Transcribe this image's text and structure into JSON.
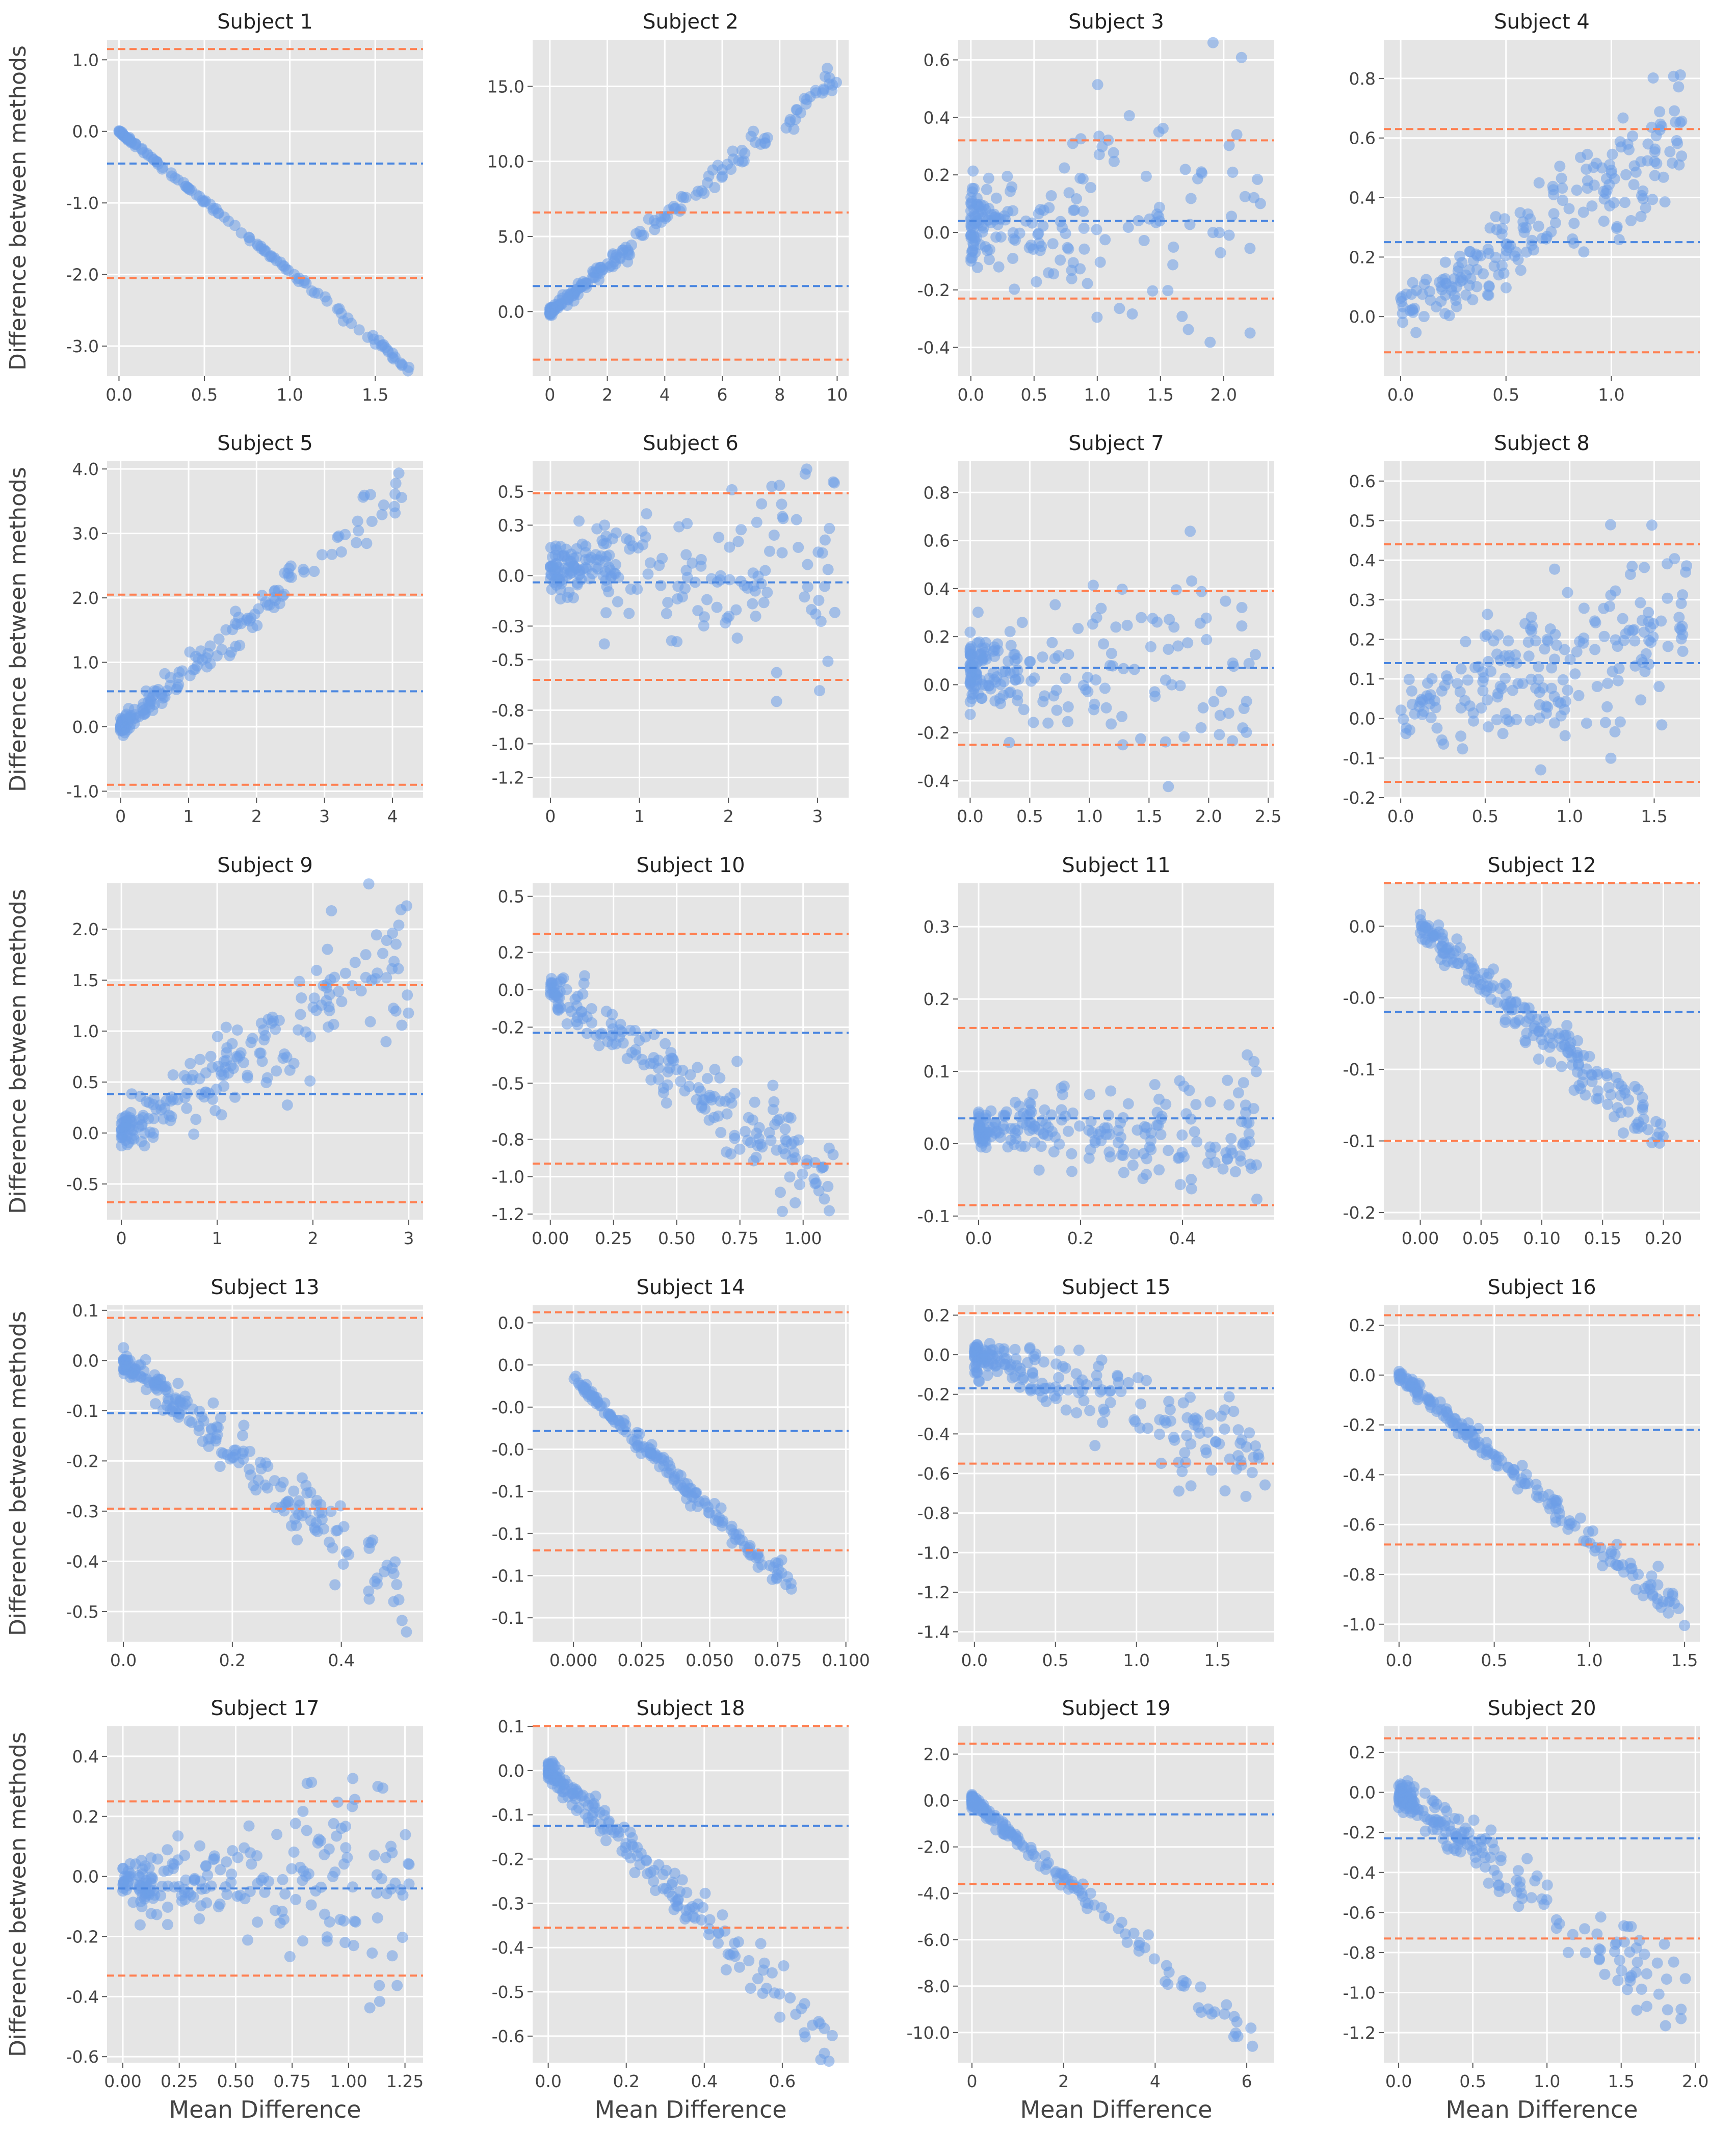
{
  "figure": {
    "ylabel": "Difference between methods",
    "xlabel": "Mean Difference"
  },
  "colors": {
    "panel_bg": "#e5e5e5",
    "grid": "#ffffff",
    "point": "#6d9ee8",
    "mean_line": "#4a86e0",
    "limit_line": "#ff7f50",
    "text": "#222222",
    "tick_text": "#444444"
  },
  "chart_data": [
    {
      "type": "scatter",
      "title": "Subject 1",
      "mean": -0.45,
      "loa": [
        1.15,
        -2.05
      ],
      "xlim": [
        -0.07,
        1.78
      ],
      "ylim": [
        -3.42,
        1.28
      ],
      "xticks": [
        0,
        0.5,
        1,
        1.5
      ],
      "xtick_labels": [
        "0.0",
        "0.5",
        "1.0",
        "1.5"
      ],
      "yticks": [
        1,
        0,
        -1,
        -2,
        -3
      ],
      "ytick_labels": [
        "1.0",
        "0.0",
        "-1.0",
        "-2.0",
        "-3.0"
      ],
      "pattern": {
        "shape": "diag",
        "n": 130,
        "x_max": 1.7,
        "slope": -1.95,
        "spread": 0.03
      }
    },
    {
      "type": "scatter",
      "title": "Subject 2",
      "mean": 1.7,
      "loa": [
        6.6,
        -3.2
      ],
      "xlim": [
        -0.6,
        10.4
      ],
      "ylim": [
        -4.3,
        18.1
      ],
      "xticks": [
        0,
        2,
        4,
        6,
        8,
        10
      ],
      "xtick_labels": [
        "0",
        "2",
        "4",
        "6",
        "8",
        "10"
      ],
      "yticks": [
        15,
        10,
        5,
        0
      ],
      "ytick_labels": [
        "15.0",
        "10.0",
        "5.0",
        "0.0"
      ],
      "pattern": {
        "shape": "linear",
        "n": 180,
        "x_max": 10,
        "slope": 1.55,
        "spread": 0.6,
        "skew": 2.2
      }
    },
    {
      "type": "scatter",
      "title": "Subject 3",
      "mean": 0.04,
      "loa": [
        0.32,
        -0.23
      ],
      "xlim": [
        -0.1,
        2.4
      ],
      "ylim": [
        -0.5,
        0.67
      ],
      "xticks": [
        0,
        0.5,
        1,
        1.5,
        2
      ],
      "xtick_labels": [
        "0.0",
        "0.5",
        "1.0",
        "1.5",
        "2.0"
      ],
      "yticks": [
        0.6,
        0.4,
        0.2,
        0,
        -0.2,
        -0.4
      ],
      "ytick_labels": [
        "0.6",
        "0.4",
        "0.2",
        "0.0",
        "-0.2",
        "-0.4"
      ],
      "pattern": {
        "shape": "funnel",
        "n": 190,
        "x_max": 2.3,
        "center": 0.04,
        "spread": 0.28,
        "skew": 2.5
      }
    },
    {
      "type": "scatter",
      "title": "Subject 4",
      "mean": 0.25,
      "loa": [
        0.63,
        -0.12
      ],
      "xlim": [
        -0.08,
        1.42
      ],
      "ylim": [
        -0.2,
        0.93
      ],
      "xticks": [
        0,
        0.5,
        1
      ],
      "xtick_labels": [
        "0.0",
        "0.5",
        "1.0"
      ],
      "yticks": [
        0.8,
        0.6,
        0.4,
        0.2,
        0
      ],
      "ytick_labels": [
        "0.8",
        "0.6",
        "0.4",
        "0.2",
        "0.0"
      ],
      "pattern": {
        "shape": "linear",
        "n": 200,
        "x_max": 1.35,
        "slope": 0.45,
        "spread": 0.12,
        "skew": 1.3
      }
    },
    {
      "type": "scatter",
      "title": "Subject 5",
      "mean": 0.55,
      "loa": [
        2.05,
        -0.9
      ],
      "xlim": [
        -0.2,
        4.45
      ],
      "ylim": [
        -1.1,
        4.12
      ],
      "xticks": [
        0,
        1,
        2,
        3,
        4
      ],
      "xtick_labels": [
        "0",
        "1",
        "2",
        "3",
        "4"
      ],
      "yticks": [
        4,
        3,
        2,
        1,
        0,
        -1
      ],
      "ytick_labels": [
        "4.0",
        "3.0",
        "2.0",
        "1.0",
        "0.0",
        "-1.0"
      ],
      "pattern": {
        "shape": "linear",
        "n": 170,
        "x_max": 4.2,
        "slope": 0.9,
        "spread": 0.25,
        "skew": 2.0
      }
    },
    {
      "type": "scatter",
      "title": "Subject 6",
      "mean": -0.04,
      "loa": [
        0.49,
        -0.62
      ],
      "xlim": [
        -0.2,
        3.35
      ],
      "ylim": [
        -1.32,
        0.68
      ],
      "xticks": [
        0,
        1,
        2,
        3
      ],
      "xtick_labels": [
        "0",
        "1",
        "2",
        "3"
      ],
      "yticks": [
        0.5,
        0.3,
        0,
        -0.3,
        -0.5,
        -0.8,
        -1.0,
        -1.2
      ],
      "ytick_labels": [
        "0.5",
        "0.3",
        "0.0",
        "-0.3",
        "-0.5",
        "-0.8",
        "-1.0",
        "-1.2"
      ],
      "pattern": {
        "shape": "funnel",
        "n": 210,
        "x_max": 3.2,
        "center": 0.05,
        "spread": 0.3,
        "skew": 1.8
      }
    },
    {
      "type": "scatter",
      "title": "Subject 7",
      "mean": 0.07,
      "loa": [
        0.39,
        -0.25
      ],
      "xlim": [
        -0.1,
        2.55
      ],
      "ylim": [
        -0.47,
        0.93
      ],
      "xticks": [
        0,
        0.5,
        1,
        1.5,
        2,
        2.5
      ],
      "xtick_labels": [
        "0.0",
        "0.5",
        "1.0",
        "1.5",
        "2.0",
        "2.5"
      ],
      "yticks": [
        0.8,
        0.6,
        0.4,
        0.2,
        0,
        -0.2,
        -0.4
      ],
      "ytick_labels": [
        "0.8",
        "0.6",
        "0.4",
        "0.2",
        "0.0",
        "-0.2",
        "-0.4"
      ],
      "pattern": {
        "shape": "funnel",
        "n": 200,
        "x_max": 2.4,
        "center": 0.05,
        "spread": 0.25,
        "skew": 2.5
      }
    },
    {
      "type": "scatter",
      "title": "Subject 8",
      "mean": 0.14,
      "loa": [
        0.44,
        -0.16
      ],
      "xlim": [
        -0.1,
        1.77
      ],
      "ylim": [
        -0.2,
        0.65
      ],
      "xticks": [
        0,
        0.5,
        1,
        1.5
      ],
      "xtick_labels": [
        "0.0",
        "0.5",
        "1.0",
        "1.5"
      ],
      "yticks": [
        0.6,
        0.5,
        0.4,
        0.3,
        0.2,
        0.1,
        0,
        -0.1,
        -0.2
      ],
      "ytick_labels": [
        "0.6",
        "0.5",
        "0.4",
        "0.3",
        "0.2",
        "0.1",
        "0.0",
        "-0.1",
        "-0.2"
      ],
      "pattern": {
        "shape": "linear",
        "n": 200,
        "x_max": 1.7,
        "slope": 0.15,
        "spread": 0.13,
        "skew": 1.0
      }
    },
    {
      "type": "scatter",
      "title": "Subject 9",
      "mean": 0.38,
      "loa": [
        1.45,
        -0.68
      ],
      "xlim": [
        -0.15,
        3.15
      ],
      "ylim": [
        -0.85,
        2.45
      ],
      "xticks": [
        0,
        1,
        2,
        3
      ],
      "xtick_labels": [
        "0",
        "1",
        "2",
        "3"
      ],
      "yticks": [
        2,
        1.5,
        1,
        0.5,
        0,
        -0.5
      ],
      "ytick_labels": [
        "2.0",
        "1.5",
        "1.0",
        "0.5",
        "0.0",
        "-0.5"
      ],
      "pattern": {
        "shape": "linear",
        "n": 200,
        "x_max": 3.0,
        "slope": 0.6,
        "spread": 0.35,
        "skew": 1.8
      }
    },
    {
      "type": "scatter",
      "title": "Subject 10",
      "mean": -0.23,
      "loa": [
        0.3,
        -0.93
      ],
      "xlim": [
        -0.07,
        1.18
      ],
      "ylim": [
        -1.23,
        0.57
      ],
      "xticks": [
        0,
        0.25,
        0.5,
        0.75,
        1
      ],
      "xtick_labels": [
        "0.00",
        "0.25",
        "0.50",
        "0.75",
        "1.00"
      ],
      "yticks": [
        0.5,
        0.2,
        0,
        -0.2,
        -0.5,
        -0.8,
        -1.0,
        -1.2
      ],
      "ytick_labels": [
        "0.5",
        "0.2",
        "0.0",
        "-0.2",
        "-0.5",
        "-0.8",
        "-1.0",
        "-1.2"
      ],
      "pattern": {
        "shape": "linear",
        "n": 190,
        "x_max": 1.12,
        "slope": -0.9,
        "spread": 0.15,
        "skew": 1.3
      }
    },
    {
      "type": "scatter",
      "title": "Subject 11",
      "mean": 0.035,
      "loa": [
        0.16,
        -0.085
      ],
      "xlim": [
        -0.04,
        0.58
      ],
      "ylim": [
        -0.105,
        0.36
      ],
      "xticks": [
        0,
        0.2,
        0.4
      ],
      "xtick_labels": [
        "0.0",
        "0.2",
        "0.4"
      ],
      "yticks": [
        0.3,
        0.2,
        0.1,
        0,
        -0.1
      ],
      "ytick_labels": [
        "0.3",
        "0.2",
        "0.1",
        "0.0",
        "-0.1"
      ],
      "pattern": {
        "shape": "funnel",
        "n": 220,
        "x_max": 0.55,
        "center": 0.02,
        "spread": 0.05,
        "skew": 1.8
      }
    },
    {
      "type": "scatter",
      "title": "Subject 12",
      "mean": -0.06,
      "loa": [
        0.03,
        -0.15
      ],
      "xlim": [
        -0.03,
        0.23
      ],
      "ylim": [
        -0.205,
        0.03
      ],
      "xticks": [
        0,
        0.05,
        0.1,
        0.15,
        0.2
      ],
      "xtick_labels": [
        "0.00",
        "0.05",
        "0.10",
        "0.15",
        "0.20"
      ],
      "yticks": [
        0,
        -0.05,
        -0.1,
        -0.15,
        -0.2
      ],
      "ytick_labels": [
        "0.0",
        "-0.0",
        "-0.1",
        "-0.1",
        "-0.2"
      ],
      "pattern": {
        "shape": "diag",
        "n": 200,
        "x_max": 0.2,
        "slope": -0.75,
        "spread": 0.015,
        "skew": 1.4
      }
    },
    {
      "type": "scatter",
      "title": "Subject 13",
      "mean": -0.105,
      "loa": [
        0.085,
        -0.295
      ],
      "xlim": [
        -0.03,
        0.55
      ],
      "ylim": [
        -0.56,
        0.11
      ],
      "xticks": [
        0,
        0.2,
        0.4
      ],
      "xtick_labels": [
        "0.0",
        "0.2",
        "0.4"
      ],
      "yticks": [
        0.1,
        0,
        -0.1,
        -0.2,
        -0.3,
        -0.4,
        -0.5
      ],
      "ytick_labels": [
        "0.1",
        "0.0",
        "-0.1",
        "-0.2",
        "-0.3",
        "-0.4",
        "-0.5"
      ],
      "pattern": {
        "shape": "diag",
        "n": 200,
        "x_max": 0.52,
        "slope": -0.9,
        "spread": 0.04,
        "skew": 1.6
      }
    },
    {
      "type": "scatter",
      "title": "Subject 14",
      "mean": -0.037,
      "loa": [
        0.0475,
        -0.122
      ],
      "xlim": [
        -0.015,
        0.101
      ],
      "ylim": [
        -0.187,
        0.0525
      ],
      "xticks": [
        0,
        0.025,
        0.05,
        0.075,
        0.1
      ],
      "xtick_labels": [
        "0.000",
        "0.025",
        "0.050",
        "0.075",
        "0.100"
      ],
      "yticks": [
        0.04,
        0.01,
        -0.02,
        -0.05,
        -0.08,
        -0.11,
        -0.14,
        -0.17
      ],
      "ytick_labels": [
        "0.0",
        "0.0",
        "-0.0",
        "-0.0",
        "-0.1",
        "-0.1",
        "-0.1",
        "-0.1"
      ],
      "pattern": {
        "shape": "diag",
        "n": 160,
        "x_max": 0.083,
        "slope": -1.85,
        "spread": 0.006,
        "skew": 1.2
      }
    },
    {
      "type": "scatter",
      "title": "Subject 15",
      "mean": -0.17,
      "loa": [
        0.21,
        -0.55
      ],
      "xlim": [
        -0.1,
        1.85
      ],
      "ylim": [
        -1.45,
        0.25
      ],
      "xticks": [
        0,
        0.5,
        1,
        1.5
      ],
      "xtick_labels": [
        "0.0",
        "0.5",
        "1.0",
        "1.5"
      ],
      "yticks": [
        0.2,
        0,
        -0.2,
        -0.4,
        -0.6,
        -0.8,
        -1.0,
        -1.2,
        -1.4
      ],
      "ytick_labels": [
        "0.2",
        "0.0",
        "-0.2",
        "-0.4",
        "-0.6",
        "-0.8",
        "-1.0",
        "-1.2",
        "-1.4"
      ],
      "pattern": {
        "shape": "diag",
        "n": 200,
        "x_max": 1.8,
        "slope": -0.3,
        "spread": 0.15,
        "skew": 2.2
      }
    },
    {
      "type": "scatter",
      "title": "Subject 16",
      "mean": -0.22,
      "loa": [
        0.24,
        -0.68
      ],
      "xlim": [
        -0.08,
        1.58
      ],
      "ylim": [
        -1.07,
        0.28
      ],
      "xticks": [
        0,
        0.5,
        1,
        1.5
      ],
      "xtick_labels": [
        "0.0",
        "0.5",
        "1.0",
        "1.5"
      ],
      "yticks": [
        0.2,
        0,
        -0.2,
        -0.4,
        -0.6,
        -0.8,
        -1.0
      ],
      "ytick_labels": [
        "0.2",
        "0.0",
        "-0.2",
        "-0.4",
        "-0.6",
        "-0.8",
        "-1.0"
      ],
      "pattern": {
        "shape": "diag",
        "n": 190,
        "x_max": 1.5,
        "slope": -0.65,
        "spread": 0.04,
        "skew": 1.5
      }
    },
    {
      "type": "scatter",
      "title": "Subject 17",
      "mean": -0.04,
      "loa": [
        0.25,
        -0.33
      ],
      "xlim": [
        -0.07,
        1.33
      ],
      "ylim": [
        -0.62,
        0.5
      ],
      "xticks": [
        0,
        0.25,
        0.5,
        0.75,
        1,
        1.25
      ],
      "xtick_labels": [
        "0.00",
        "0.25",
        "0.50",
        "0.75",
        "1.00",
        "1.25"
      ],
      "yticks": [
        0.4,
        0.2,
        0,
        -0.2,
        -0.4,
        -0.6
      ],
      "ytick_labels": [
        "0.4",
        "0.2",
        "0.0",
        "-0.2",
        "-0.4",
        "-0.6"
      ],
      "pattern": {
        "shape": "funnel",
        "n": 210,
        "x_max": 1.27,
        "center": -0.02,
        "spread": 0.17,
        "skew": 1.8
      }
    },
    {
      "type": "scatter",
      "title": "Subject 18",
      "mean": -0.125,
      "loa": [
        0.1,
        -0.355
      ],
      "xlim": [
        -0.04,
        0.77
      ],
      "ylim": [
        -0.66,
        0.1
      ],
      "xticks": [
        0,
        0.2,
        0.4,
        0.6
      ],
      "xtick_labels": [
        "0.0",
        "0.2",
        "0.4",
        "0.6"
      ],
      "yticks": [
        0.1,
        0,
        -0.1,
        -0.2,
        -0.3,
        -0.4,
        -0.5,
        -0.6
      ],
      "ytick_labels": [
        "0.1",
        "0.0",
        "-0.1",
        "-0.2",
        "-0.3",
        "-0.4",
        "-0.5",
        "-0.6"
      ],
      "pattern": {
        "shape": "diag",
        "n": 190,
        "x_max": 0.73,
        "slope": -0.85,
        "spread": 0.04,
        "skew": 1.7
      }
    },
    {
      "type": "scatter",
      "title": "Subject 19",
      "mean": -0.6,
      "loa": [
        2.45,
        -3.6
      ],
      "xlim": [
        -0.3,
        6.6
      ],
      "ylim": [
        -11.3,
        3.2
      ],
      "xticks": [
        0,
        2,
        4,
        6
      ],
      "xtick_labels": [
        "0",
        "2",
        "4",
        "6"
      ],
      "yticks": [
        2,
        0,
        -2,
        -4,
        -6,
        -8,
        -10
      ],
      "ytick_labels": [
        "2.0",
        "0.0",
        "-2.0",
        "-4.0",
        "-6.0",
        "-8.0",
        "-10.0"
      ],
      "pattern": {
        "shape": "diag",
        "n": 200,
        "x_max": 6.2,
        "slope": -1.7,
        "spread": 0.4,
        "skew": 3.5
      }
    },
    {
      "type": "scatter",
      "title": "Subject 20",
      "mean": -0.23,
      "loa": [
        0.27,
        -0.73
      ],
      "xlim": [
        -0.1,
        2.03
      ],
      "ylim": [
        -1.35,
        0.33
      ],
      "xticks": [
        0,
        0.5,
        1,
        1.5,
        2
      ],
      "xtick_labels": [
        "0.0",
        "0.5",
        "1.0",
        "1.5",
        "2.0"
      ],
      "yticks": [
        0.2,
        0,
        -0.2,
        -0.4,
        -0.6,
        -0.8,
        -1.0,
        -1.2
      ],
      "ytick_labels": [
        "0.2",
        "0.0",
        "-0.2",
        "-0.4",
        "-0.6",
        "-0.8",
        "-1.0",
        "-1.2"
      ],
      "pattern": {
        "shape": "diag",
        "n": 200,
        "x_max": 1.95,
        "slope": -0.55,
        "spread": 0.12,
        "skew": 2.0
      }
    }
  ]
}
